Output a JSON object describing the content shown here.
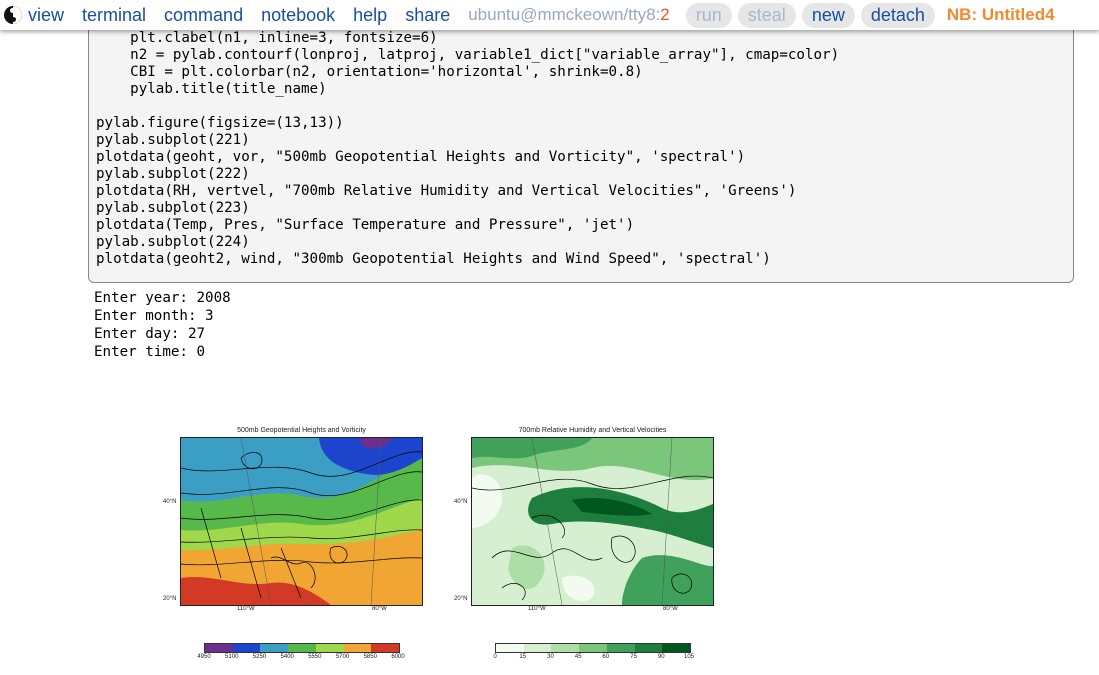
{
  "menu": {
    "items": [
      {
        "label": "view"
      },
      {
        "label": "terminal"
      },
      {
        "label": "command"
      },
      {
        "label": "notebook"
      },
      {
        "label": "help"
      },
      {
        "label": "share"
      }
    ],
    "session": "ubuntu@mmckeown/tty8:",
    "session_count": "2",
    "buttons": [
      {
        "label": "run",
        "state": "dim"
      },
      {
        "label": "steal",
        "state": "dim"
      },
      {
        "label": "new",
        "state": "active"
      },
      {
        "label": "detach",
        "state": "active"
      }
    ],
    "notebook_name": "NB: Untitled4"
  },
  "cell": {
    "code_lines": [
      "    plt.clabel(n1, inline=3, fontsize=6)",
      "    n2 = pylab.contourf(lonproj, latproj, variable1_dict[\"variable_array\"], cmap=color)",
      "    CBI = plt.colorbar(n2, orientation='horizontal', shrink=0.8)",
      "    pylab.title(title_name)",
      "",
      "pylab.figure(figsize=(13,13))",
      "pylab.subplot(221)",
      "plotdata(geoht, vor, \"500mb Geopotential Heights and Vorticity\", 'spectral')",
      "pylab.subplot(222)",
      "plotdata(RH, vertvel, \"700mb Relative Humidity and Vertical Velocities\", 'Greens')",
      "pylab.subplot(223)",
      "plotdata(Temp, Pres, \"Surface Temperature and Pressure\", 'jet')",
      "pylab.subplot(224)",
      "plotdata(geoht2, wind, \"300mb Geopotential Heights and Wind Speed\", 'spectral')"
    ]
  },
  "output": {
    "lines": [
      "Enter year: 2008",
      "Enter month: 3",
      "Enter day: 27",
      "Enter time: 0"
    ]
  },
  "figure": {
    "plots": [
      {
        "title": "500mb Geopotential Heights and Vorticity",
        "lat_labels": [
          "40°N",
          "20°N"
        ],
        "lon_labels": [
          "110°W",
          "80°W"
        ],
        "colorbar_ticks": [
          "4950",
          "5100",
          "5250",
          "5400",
          "5550",
          "5700",
          "5850",
          "6000"
        ],
        "colorbar_colors": [
          "#6a2f8f",
          "#1d44cc",
          "#3b9ec4",
          "#57b94a",
          "#9fd84a",
          "#f1a533",
          "#d23a26"
        ]
      },
      {
        "title": "700mb Relative Humidity and Vertical Velocities",
        "lat_labels": [
          "40°N",
          "20°N"
        ],
        "lon_labels": [
          "110°W",
          "80°W"
        ],
        "colorbar_ticks": [
          "0",
          "15",
          "30",
          "45",
          "60",
          "75",
          "90",
          "105"
        ],
        "colorbar_colors": [
          "#f3faf0",
          "#d6efd0",
          "#aedea7",
          "#7ac67a",
          "#40a25a",
          "#1d7e3e",
          "#00561f"
        ]
      }
    ]
  }
}
